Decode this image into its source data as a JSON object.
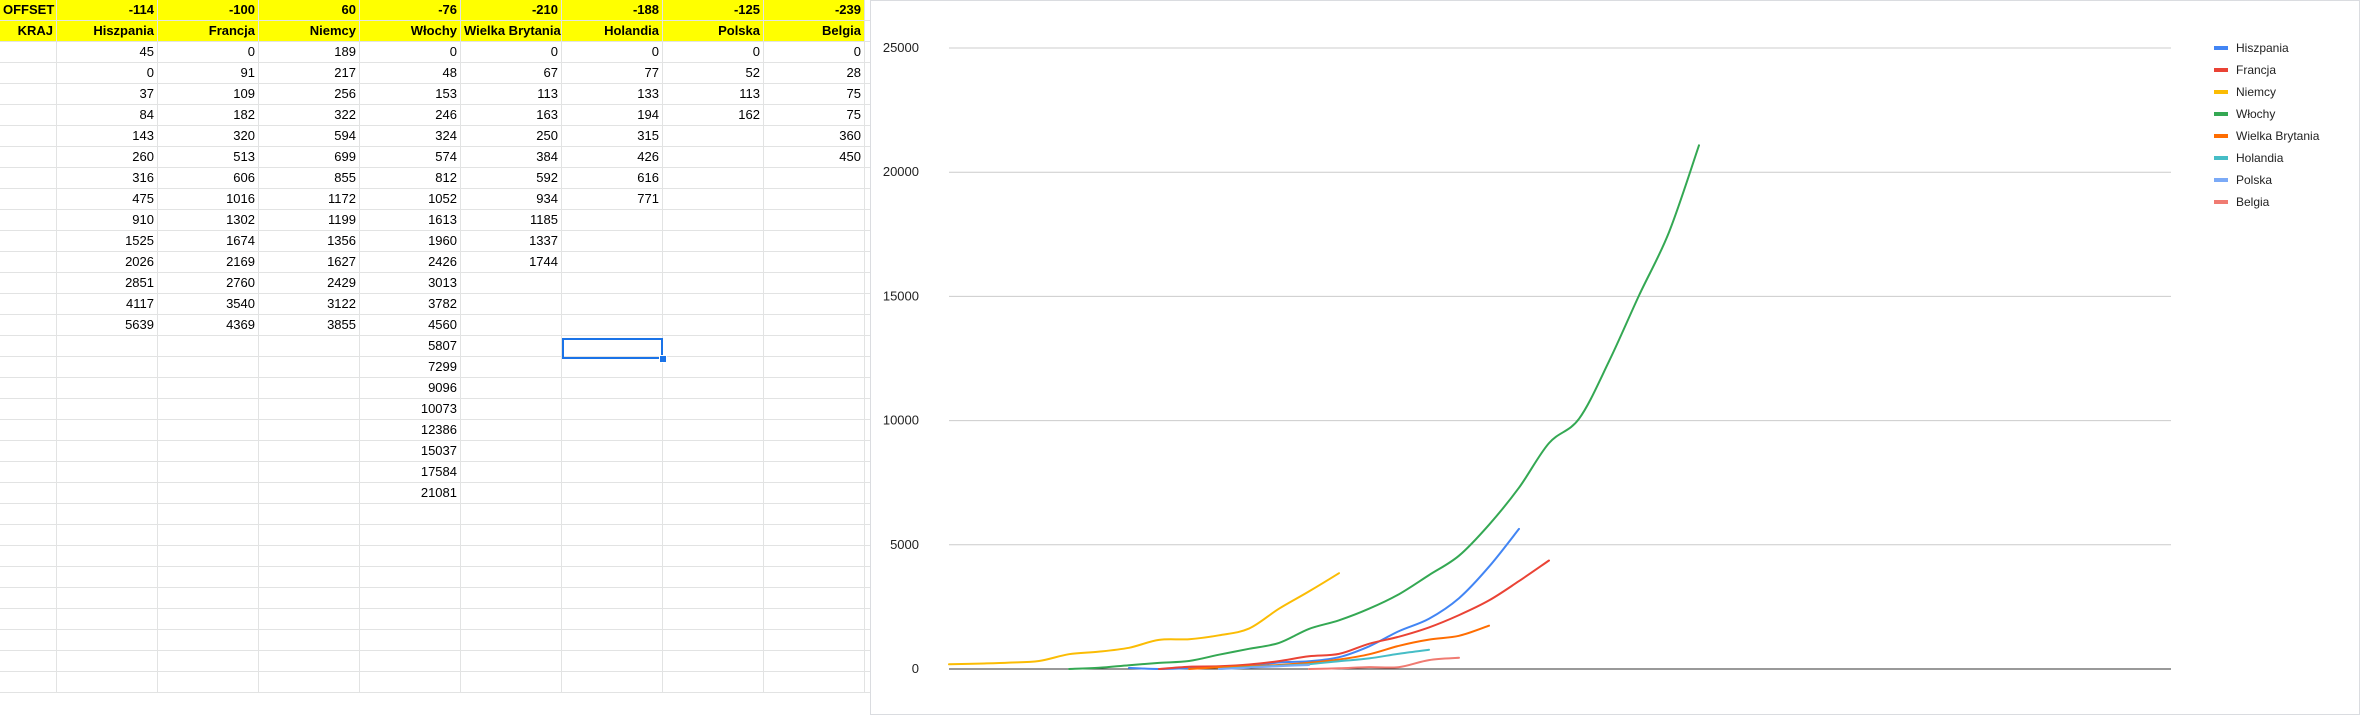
{
  "sheet": {
    "header_rows": [
      [
        "OFFSET",
        "-114",
        "-100",
        "60",
        "-76",
        "-210",
        "-188",
        "-125",
        "-239"
      ],
      [
        "KRAJ",
        "Hiszpania",
        "Francja",
        "Niemcy",
        "Włochy",
        "Wielka Brytania",
        "Holandia",
        "Polska",
        "Belgia"
      ]
    ],
    "data_rows": [
      [
        "",
        "45",
        "0",
        "189",
        "0",
        "0",
        "0",
        "0",
        "0"
      ],
      [
        "",
        "0",
        "91",
        "217",
        "48",
        "67",
        "77",
        "52",
        "28"
      ],
      [
        "",
        "37",
        "109",
        "256",
        "153",
        "113",
        "133",
        "113",
        "75"
      ],
      [
        "",
        "84",
        "182",
        "322",
        "246",
        "163",
        "194",
        "162",
        "75"
      ],
      [
        "",
        "143",
        "320",
        "594",
        "324",
        "250",
        "315",
        "",
        "360"
      ],
      [
        "",
        "260",
        "513",
        "699",
        "574",
        "384",
        "426",
        "",
        "450"
      ],
      [
        "",
        "316",
        "606",
        "855",
        "812",
        "592",
        "616",
        "",
        ""
      ],
      [
        "",
        "475",
        "1016",
        "1172",
        "1052",
        "934",
        "771",
        "",
        ""
      ],
      [
        "",
        "910",
        "1302",
        "1199",
        "1613",
        "1185",
        "",
        "",
        ""
      ],
      [
        "",
        "1525",
        "1674",
        "1356",
        "1960",
        "1337",
        "",
        "",
        ""
      ],
      [
        "",
        "2026",
        "2169",
        "1627",
        "2426",
        "1744",
        "",
        "",
        ""
      ],
      [
        "",
        "2851",
        "2760",
        "2429",
        "3013",
        "",
        "",
        "",
        ""
      ],
      [
        "",
        "4117",
        "3540",
        "3122",
        "3782",
        "",
        "",
        "",
        ""
      ],
      [
        "",
        "5639",
        "4369",
        "3855",
        "4560",
        "",
        "",
        "",
        ""
      ],
      [
        "",
        "",
        "",
        "",
        "5807",
        "",
        "",
        "",
        ""
      ],
      [
        "",
        "",
        "",
        "",
        "7299",
        "",
        "",
        "",
        ""
      ],
      [
        "",
        "",
        "",
        "",
        "9096",
        "",
        "",
        "",
        ""
      ],
      [
        "",
        "",
        "",
        "",
        "10073",
        "",
        "",
        "",
        ""
      ],
      [
        "",
        "",
        "",
        "",
        "12386",
        "",
        "",
        "",
        ""
      ],
      [
        "",
        "",
        "",
        "",
        "15037",
        "",
        "",
        "",
        ""
      ],
      [
        "",
        "",
        "",
        "",
        "17584",
        "",
        "",
        "",
        ""
      ],
      [
        "",
        "",
        "",
        "",
        "21081",
        "",
        "",
        "",
        ""
      ]
    ],
    "empty_row_count": 9
  },
  "chart_data": {
    "type": "line",
    "title": "",
    "xlabel": "",
    "ylabel": "",
    "ylim": [
      0,
      25000
    ],
    "yticks": [
      0,
      5000,
      10000,
      15000,
      20000,
      25000
    ],
    "grid": true,
    "legend": "right",
    "series": [
      {
        "name": "Hiszpania",
        "color": "#4285f4",
        "start": 6,
        "values": [
          45,
          0,
          37,
          84,
          143,
          260,
          316,
          475,
          910,
          1525,
          2026,
          2851,
          4117,
          5639
        ]
      },
      {
        "name": "Francja",
        "color": "#ea4335",
        "start": 7,
        "values": [
          0,
          91,
          109,
          182,
          320,
          513,
          606,
          1016,
          1302,
          1674,
          2169,
          2760,
          3540,
          4369
        ]
      },
      {
        "name": "Niemcy",
        "color": "#fbbc04",
        "start": 0,
        "values": [
          189,
          217,
          256,
          322,
          594,
          699,
          855,
          1172,
          1199,
          1356,
          1627,
          2429,
          3122,
          3855
        ]
      },
      {
        "name": "Włochy",
        "color": "#34a853",
        "start": 4,
        "values": [
          0,
          48,
          153,
          246,
          324,
          574,
          812,
          1052,
          1613,
          1960,
          2426,
          3013,
          3782,
          4560,
          5807,
          7299,
          9096,
          10073,
          12386,
          15037,
          17584,
          21081
        ]
      },
      {
        "name": "Wielka Brytania",
        "color": "#ff6d01",
        "start": 8,
        "values": [
          0,
          67,
          113,
          163,
          250,
          384,
          592,
          934,
          1185,
          1337,
          1744
        ]
      },
      {
        "name": "Holandia",
        "color": "#46bdc6",
        "start": 9,
        "values": [
          0,
          77,
          133,
          194,
          315,
          426,
          616,
          771
        ]
      },
      {
        "name": "Polska",
        "color": "#7baaf7",
        "start": 9,
        "values": [
          0,
          52,
          113,
          162
        ]
      },
      {
        "name": "Belgia",
        "color": "#f07b72",
        "start": 12,
        "values": [
          0,
          28,
          75,
          75,
          360,
          450
        ]
      }
    ]
  }
}
